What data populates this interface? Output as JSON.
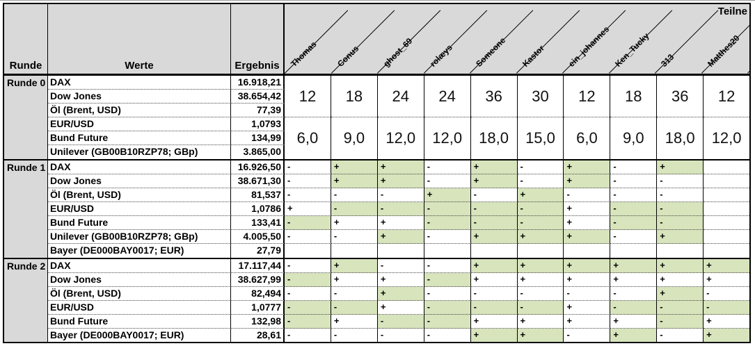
{
  "header": {
    "runde_label": "Runde",
    "werte_label": "Werte",
    "ergebnis_label": "Ergebnis",
    "teilnehmer_label": "Teilne"
  },
  "players": [
    "Thomas",
    "Conus",
    "ghost_69",
    "rolæys",
    "Someone",
    "Kastor",
    "ein_johannes",
    "Ken_Tucky",
    "313",
    "Matthes20"
  ],
  "colors": {
    "header_grey": "#D9D9D9",
    "highlight_green": "#D7E4BC",
    "cell_white": "#FFFFFF"
  },
  "sections": [
    {
      "name": "Runde 0",
      "type": "stakes",
      "rows": [
        {
          "label": "DAX",
          "value": "16.918,21"
        },
        {
          "label": "Dow Jones",
          "value": "38.654,42"
        },
        {
          "label": "Öl (Brent, USD)",
          "value": "77,39"
        },
        {
          "label": "EUR/USD",
          "value": "1,0793"
        },
        {
          "label": "Bund Future",
          "value": "134,99"
        },
        {
          "label": "Unilever (GB00B10RZP78; GBp)",
          "value": "3.865,00"
        }
      ],
      "stakes_top": [
        "12",
        "18",
        "24",
        "24",
        "36",
        "30",
        "12",
        "18",
        "36",
        "12"
      ],
      "stakes_bottom": [
        "6,0",
        "9,0",
        "12,0",
        "12,0",
        "18,0",
        "15,0",
        "6,0",
        "9,0",
        "18,0",
        "12,0"
      ]
    },
    {
      "name": "Runde 1",
      "type": "marks",
      "rows": [
        {
          "label": "DAX",
          "value": "16.926,50",
          "marks": [
            "-w",
            "+g",
            "+g",
            "-w",
            "+g",
            "-w",
            "+g",
            "-w",
            "+g",
            ""
          ]
        },
        {
          "label": "Dow Jones",
          "value": "38.671,30",
          "marks": [
            "-w",
            "+g",
            "+g",
            "-w",
            "+g",
            "-w",
            "+g",
            "-w",
            "-w",
            ""
          ]
        },
        {
          "label": "Öl (Brent, USD)",
          "value": "81,537",
          "marks": [
            "-w",
            "-w",
            "-w",
            "+g",
            "-w",
            "+g",
            "-w",
            "-w",
            "-w",
            ""
          ]
        },
        {
          "label": "EUR/USD",
          "value": "1,0786",
          "marks": [
            "+w",
            "-g",
            "-g",
            "-g",
            "-g",
            "-g",
            "+w",
            "-g",
            "-g",
            ""
          ]
        },
        {
          "label": "Bund Future",
          "value": "133,41",
          "marks": [
            "-g",
            "+w",
            "+w",
            "-g",
            "-g",
            "-g",
            "+w",
            "-g",
            "-g",
            ""
          ]
        },
        {
          "label": "Unilever (GB00B10RZP78; GBp)",
          "value": "4.005,50",
          "marks": [
            "-w",
            "-w",
            "+g",
            "-w",
            "+g",
            "+g",
            "+g",
            "-w",
            "+g",
            ""
          ]
        },
        {
          "label": "Bayer (DE000BAY0017; EUR)",
          "value": "27,79",
          "marks": [
            "",
            "",
            "",
            "",
            "",
            "",
            "",
            "",
            "",
            ""
          ]
        }
      ]
    },
    {
      "name": "Runde 2",
      "type": "marks",
      "rows": [
        {
          "label": "DAX",
          "value": "17.117,44",
          "marks": [
            "-w",
            "+g",
            "-w",
            "-w",
            "+g",
            "+g",
            "+g",
            "+g",
            "+g",
            "+g"
          ]
        },
        {
          "label": "Dow Jones",
          "value": "38.627,99",
          "marks": [
            "-g",
            "+w",
            "+w",
            "-g",
            "+w",
            "+w",
            "+w",
            "+w",
            "+w",
            "+w"
          ]
        },
        {
          "label": "Öl (Brent, USD)",
          "value": "82,494",
          "marks": [
            "-w",
            "-w",
            "+g",
            "-w",
            "-w",
            "-w",
            "-w",
            "-w",
            "+g",
            "-w"
          ]
        },
        {
          "label": "EUR/USD",
          "value": "1,0777",
          "marks": [
            "-g",
            "-g",
            "+w",
            "-g",
            "-g",
            "-g",
            "+w",
            "-g",
            "-g",
            "-g"
          ]
        },
        {
          "label": "Bund Future",
          "value": "132,98",
          "marks": [
            "-g",
            "+w",
            "-g",
            "-g",
            "+w",
            "+w",
            "+w",
            "+w",
            "-g",
            "+w"
          ]
        },
        {
          "label": "Bayer (DE000BAY0017; EUR)",
          "value": "28,61",
          "marks": [
            "-w",
            "-w",
            "-w",
            "-w",
            "+g",
            "+g",
            "-w",
            "+g",
            "-w",
            "+g"
          ]
        }
      ]
    }
  ]
}
